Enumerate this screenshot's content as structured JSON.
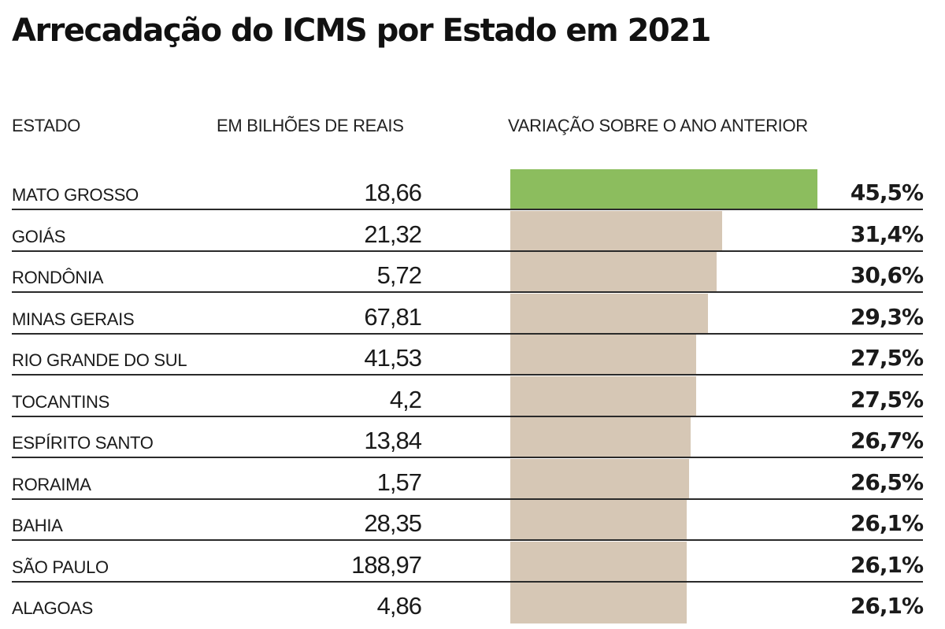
{
  "title": "Arrecadação do ICMS por Estado em 2021",
  "headers": {
    "estado": "ESTADO",
    "valor": "EM BILHÕES DE REAIS",
    "variacao": "VARIAÇÃO SOBRE O ANO ANTERIOR"
  },
  "colors": {
    "highlight_bar": "#8cbd5e",
    "bar": "#d6c7b5",
    "rule": "#2a2a2a"
  },
  "chart_data": {
    "type": "table",
    "title": "Arrecadação do ICMS por Estado em 2021",
    "columns": [
      "ESTADO",
      "EM BILHÕES DE REAIS",
      "VARIAÇÃO SOBRE O ANO ANTERIOR"
    ],
    "rows": [
      {
        "estado": "MATO GROSSO",
        "valor": "18,66",
        "variacao": "45,5%",
        "variacao_num": 45.5,
        "highlight": true
      },
      {
        "estado": "GOIÁS",
        "valor": "21,32",
        "variacao": "31,4%",
        "variacao_num": 31.4
      },
      {
        "estado": "RONDÔNIA",
        "valor": "5,72",
        "variacao": "30,6%",
        "variacao_num": 30.6
      },
      {
        "estado": "MINAS GERAIS",
        "valor": "67,81",
        "variacao": "29,3%",
        "variacao_num": 29.3
      },
      {
        "estado": "RIO GRANDE DO SUL",
        "valor": "41,53",
        "variacao": "27,5%",
        "variacao_num": 27.5
      },
      {
        "estado": "TOCANTINS",
        "valor": "4,2",
        "variacao": "27,5%",
        "variacao_num": 27.5
      },
      {
        "estado": "ESPÍRITO SANTO",
        "valor": "13,84",
        "variacao": "26,7%",
        "variacao_num": 26.7
      },
      {
        "estado": "RORAIMA",
        "valor": "1,57",
        "variacao": "26,5%",
        "variacao_num": 26.5
      },
      {
        "estado": "BAHIA",
        "valor": "28,35",
        "variacao": "26,1%",
        "variacao_num": 26.1
      },
      {
        "estado": "SÃO PAULO",
        "valor": "188,97",
        "variacao": "26,1%",
        "variacao_num": 26.1
      },
      {
        "estado": "ALAGOAS",
        "valor": "4,86",
        "variacao": "26,1%",
        "variacao_num": 26.1
      }
    ]
  }
}
